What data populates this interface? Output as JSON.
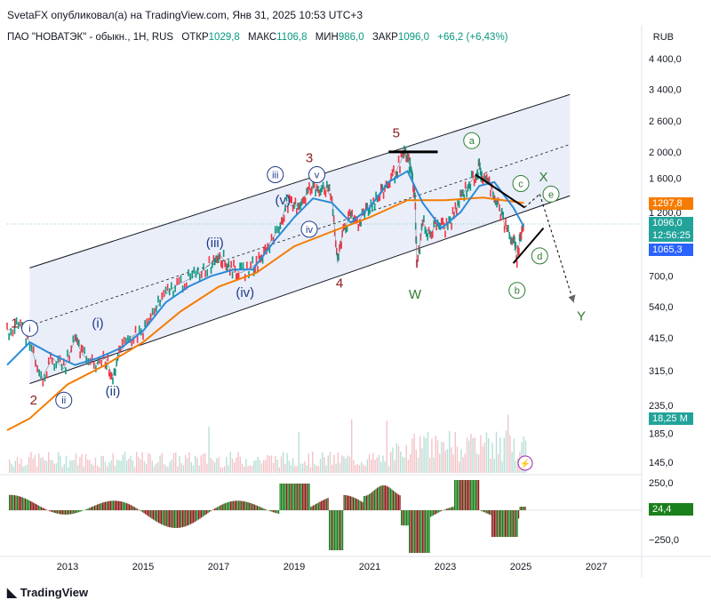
{
  "header": {
    "published": "SvetaFX опубликовал(а) на TradingView.com, Янв 31, 2025 10:53 UTC+3",
    "symbol": "ПАО \"НОВАТЭК\" - обыкн., 1H, RUS",
    "open_label": "ОТКР",
    "open": "1029,8",
    "high_label": "МАКС",
    "high": "1106,8",
    "low_label": "МИН",
    "low": "986,0",
    "close_label": "ЗАКР",
    "close": "1096,0",
    "change": "+66,2 (+6,43%)",
    "currency": "RUB"
  },
  "tags": {
    "ma_orange": "1297,8",
    "price": "1096,0",
    "countdown": "12:56:25",
    "ma_blue": "1065,3",
    "volume": "18,25 M",
    "osc": "24,4"
  },
  "colors": {
    "up": "#089981",
    "down": "#f23645",
    "ma_orange": "#f57c00",
    "ma_blue": "#2a8ad7",
    "channel_fill": "#e8ecf8",
    "wave_red": "#8b1a1a",
    "wave_blue": "#1e3a8a",
    "wave_green": "#2e7d32",
    "osc_up": "#1b7f1b",
    "osc_down": "#8e1b1b",
    "blue_tag": "#2962ff",
    "teal_tag": "#22a39a"
  },
  "footer": {
    "brand": "TradingView",
    "icon": "tradingview-logo-icon"
  },
  "chart_data": {
    "type": "line",
    "scale": "log",
    "title": "ПАО \"НОВАТЭК\" - обыкн., 1H, RUS",
    "y_ticks": [
      "4 400,0",
      "3 400,0",
      "2 600,0",
      "2 000,0",
      "1 600,0",
      "1 200,0",
      "700,0",
      "540,0",
      "415,0",
      "315,0",
      "235,0",
      "185,0",
      "145,0"
    ],
    "osc_ticks": [
      "250,0",
      "−250,0"
    ],
    "x_ticks": [
      "2013",
      "2015",
      "2017",
      "2019",
      "2021",
      "2023",
      "2025",
      "2027"
    ],
    "price_path": [
      [
        2011.4,
        440
      ],
      [
        2011.7,
        470
      ],
      [
        2012.0,
        400
      ],
      [
        2012.3,
        290
      ],
      [
        2012.6,
        350
      ],
      [
        2012.9,
        320
      ],
      [
        2013.2,
        410
      ],
      [
        2013.4,
        360
      ],
      [
        2013.7,
        330
      ],
      [
        2014.0,
        350
      ],
      [
        2014.2,
        300
      ],
      [
        2014.4,
        370
      ],
      [
        2014.7,
        420
      ],
      [
        2015.0,
        440
      ],
      [
        2015.3,
        520
      ],
      [
        2015.6,
        600
      ],
      [
        2015.9,
        650
      ],
      [
        2016.2,
        680
      ],
      [
        2016.5,
        720
      ],
      [
        2016.8,
        780
      ],
      [
        2017.0,
        850
      ],
      [
        2017.2,
        780
      ],
      [
        2017.4,
        740
      ],
      [
        2017.6,
        720
      ],
      [
        2017.9,
        760
      ],
      [
        2018.1,
        800
      ],
      [
        2018.3,
        900
      ],
      [
        2018.6,
        1050
      ],
      [
        2018.8,
        1300
      ],
      [
        2019.0,
        1250
      ],
      [
        2019.2,
        1320
      ],
      [
        2019.4,
        1450
      ],
      [
        2019.6,
        1480
      ],
      [
        2019.8,
        1500
      ],
      [
        2020.0,
        1350
      ],
      [
        2020.15,
        780
      ],
      [
        2020.3,
        1050
      ],
      [
        2020.5,
        1150
      ],
      [
        2020.7,
        1100
      ],
      [
        2020.9,
        1250
      ],
      [
        2021.1,
        1300
      ],
      [
        2021.3,
        1400
      ],
      [
        2021.5,
        1550
      ],
      [
        2021.7,
        1700
      ],
      [
        2021.9,
        1950
      ],
      [
        2022.0,
        1900
      ],
      [
        2022.1,
        1700
      ],
      [
        2022.2,
        1350
      ],
      [
        2022.25,
        750
      ],
      [
        2022.4,
        1100
      ],
      [
        2022.6,
        1000
      ],
      [
        2022.8,
        1100
      ],
      [
        2023.0,
        1050
      ],
      [
        2023.2,
        1150
      ],
      [
        2023.4,
        1350
      ],
      [
        2023.6,
        1500
      ],
      [
        2023.8,
        1650
      ],
      [
        2023.9,
        1750
      ],
      [
        2024.0,
        1600
      ],
      [
        2024.2,
        1500
      ],
      [
        2024.4,
        1300
      ],
      [
        2024.6,
        1050
      ],
      [
        2024.8,
        950
      ],
      [
        2024.9,
        820
      ],
      [
        2025.0,
        1000
      ],
      [
        2025.08,
        1096
      ]
    ],
    "ma_orange": [
      [
        2011.4,
        190
      ],
      [
        2012.0,
        210
      ],
      [
        2013.0,
        280
      ],
      [
        2014.0,
        330
      ],
      [
        2015.0,
        400
      ],
      [
        2016.0,
        520
      ],
      [
        2017.0,
        640
      ],
      [
        2018.0,
        720
      ],
      [
        2019.0,
        900
      ],
      [
        2020.0,
        1020
      ],
      [
        2021.0,
        1150
      ],
      [
        2022.0,
        1330
      ],
      [
        2023.0,
        1330
      ],
      [
        2024.0,
        1360
      ],
      [
        2025.08,
        1298
      ]
    ],
    "ma_blue": [
      [
        2011.4,
        330
      ],
      [
        2012.0,
        400
      ],
      [
        2012.6,
        360
      ],
      [
        2013.2,
        330
      ],
      [
        2013.8,
        350
      ],
      [
        2014.4,
        380
      ],
      [
        2015.0,
        440
      ],
      [
        2015.6,
        560
      ],
      [
        2016.2,
        640
      ],
      [
        2016.8,
        700
      ],
      [
        2017.4,
        740
      ],
      [
        2017.9,
        740
      ],
      [
        2018.5,
        950
      ],
      [
        2019.0,
        1150
      ],
      [
        2019.5,
        1350
      ],
      [
        2020.0,
        1300
      ],
      [
        2020.5,
        1100
      ],
      [
        2021.0,
        1250
      ],
      [
        2021.5,
        1550
      ],
      [
        2022.0,
        1700
      ],
      [
        2022.4,
        1300
      ],
      [
        2022.9,
        1050
      ],
      [
        2023.4,
        1200
      ],
      [
        2023.9,
        1500
      ],
      [
        2024.3,
        1550
      ],
      [
        2024.8,
        1250
      ],
      [
        2025.08,
        1065
      ]
    ],
    "channel": {
      "upper": [
        [
          2012.0,
          750
        ],
        [
          2026.3,
          3250
        ]
      ],
      "lower": [
        [
          2012.0,
          282
        ],
        [
          2026.3,
          1380
        ]
      ],
      "middle": [
        [
          2012.0,
          460
        ],
        [
          2026.3,
          2130
        ]
      ]
    },
    "waves": [
      {
        "label": "1",
        "x": 2011.6,
        "y": 470,
        "color": "red",
        "circled": false
      },
      {
        "label": "2",
        "x": 2012.1,
        "y": 245,
        "color": "red",
        "circled": false
      },
      {
        "label": "3",
        "x": 2019.4,
        "y": 1900,
        "color": "red",
        "circled": false
      },
      {
        "label": "4",
        "x": 2020.2,
        "y": 660,
        "color": "red",
        "circled": false
      },
      {
        "label": "5",
        "x": 2021.7,
        "y": 2350,
        "color": "red",
        "circled": false
      },
      {
        "label": "i",
        "x": 2012.0,
        "y": 450,
        "color": "blue",
        "circled": true
      },
      {
        "label": "ii",
        "x": 2012.9,
        "y": 245,
        "color": "blue",
        "circled": true
      },
      {
        "label": "(i)",
        "x": 2013.8,
        "y": 470,
        "color": "blue",
        "circled": false
      },
      {
        "label": "(ii)",
        "x": 2014.2,
        "y": 265,
        "color": "blue",
        "circled": false
      },
      {
        "label": "(iii)",
        "x": 2016.9,
        "y": 930,
        "color": "blue",
        "circled": false
      },
      {
        "label": "(iv)",
        "x": 2017.7,
        "y": 610,
        "color": "blue",
        "circled": false
      },
      {
        "label": "iii",
        "x": 2018.5,
        "y": 1650,
        "color": "blue",
        "circled": true
      },
      {
        "label": "(v)",
        "x": 2018.7,
        "y": 1330,
        "color": "blue",
        "circled": false
      },
      {
        "label": "iv",
        "x": 2019.4,
        "y": 1040,
        "color": "blue",
        "circled": true
      },
      {
        "label": "v",
        "x": 2019.6,
        "y": 1650,
        "color": "blue",
        "circled": true
      },
      {
        "label": "W",
        "x": 2022.2,
        "y": 600,
        "color": "green",
        "circled": false
      },
      {
        "label": "a",
        "x": 2023.7,
        "y": 2200,
        "color": "green",
        "circled": true
      },
      {
        "label": "b",
        "x": 2024.9,
        "y": 620,
        "color": "green",
        "circled": true
      },
      {
        "label": "c",
        "x": 2025.0,
        "y": 1530,
        "color": "green",
        "circled": true
      },
      {
        "label": "d",
        "x": 2025.5,
        "y": 830,
        "color": "green",
        "circled": true
      },
      {
        "label": "e",
        "x": 2025.8,
        "y": 1400,
        "color": "green",
        "circled": true
      },
      {
        "label": "X",
        "x": 2025.6,
        "y": 1620,
        "color": "green",
        "circled": false
      },
      {
        "label": "Y",
        "x": 2026.6,
        "y": 500,
        "color": "green",
        "circled": false
      }
    ]
  }
}
